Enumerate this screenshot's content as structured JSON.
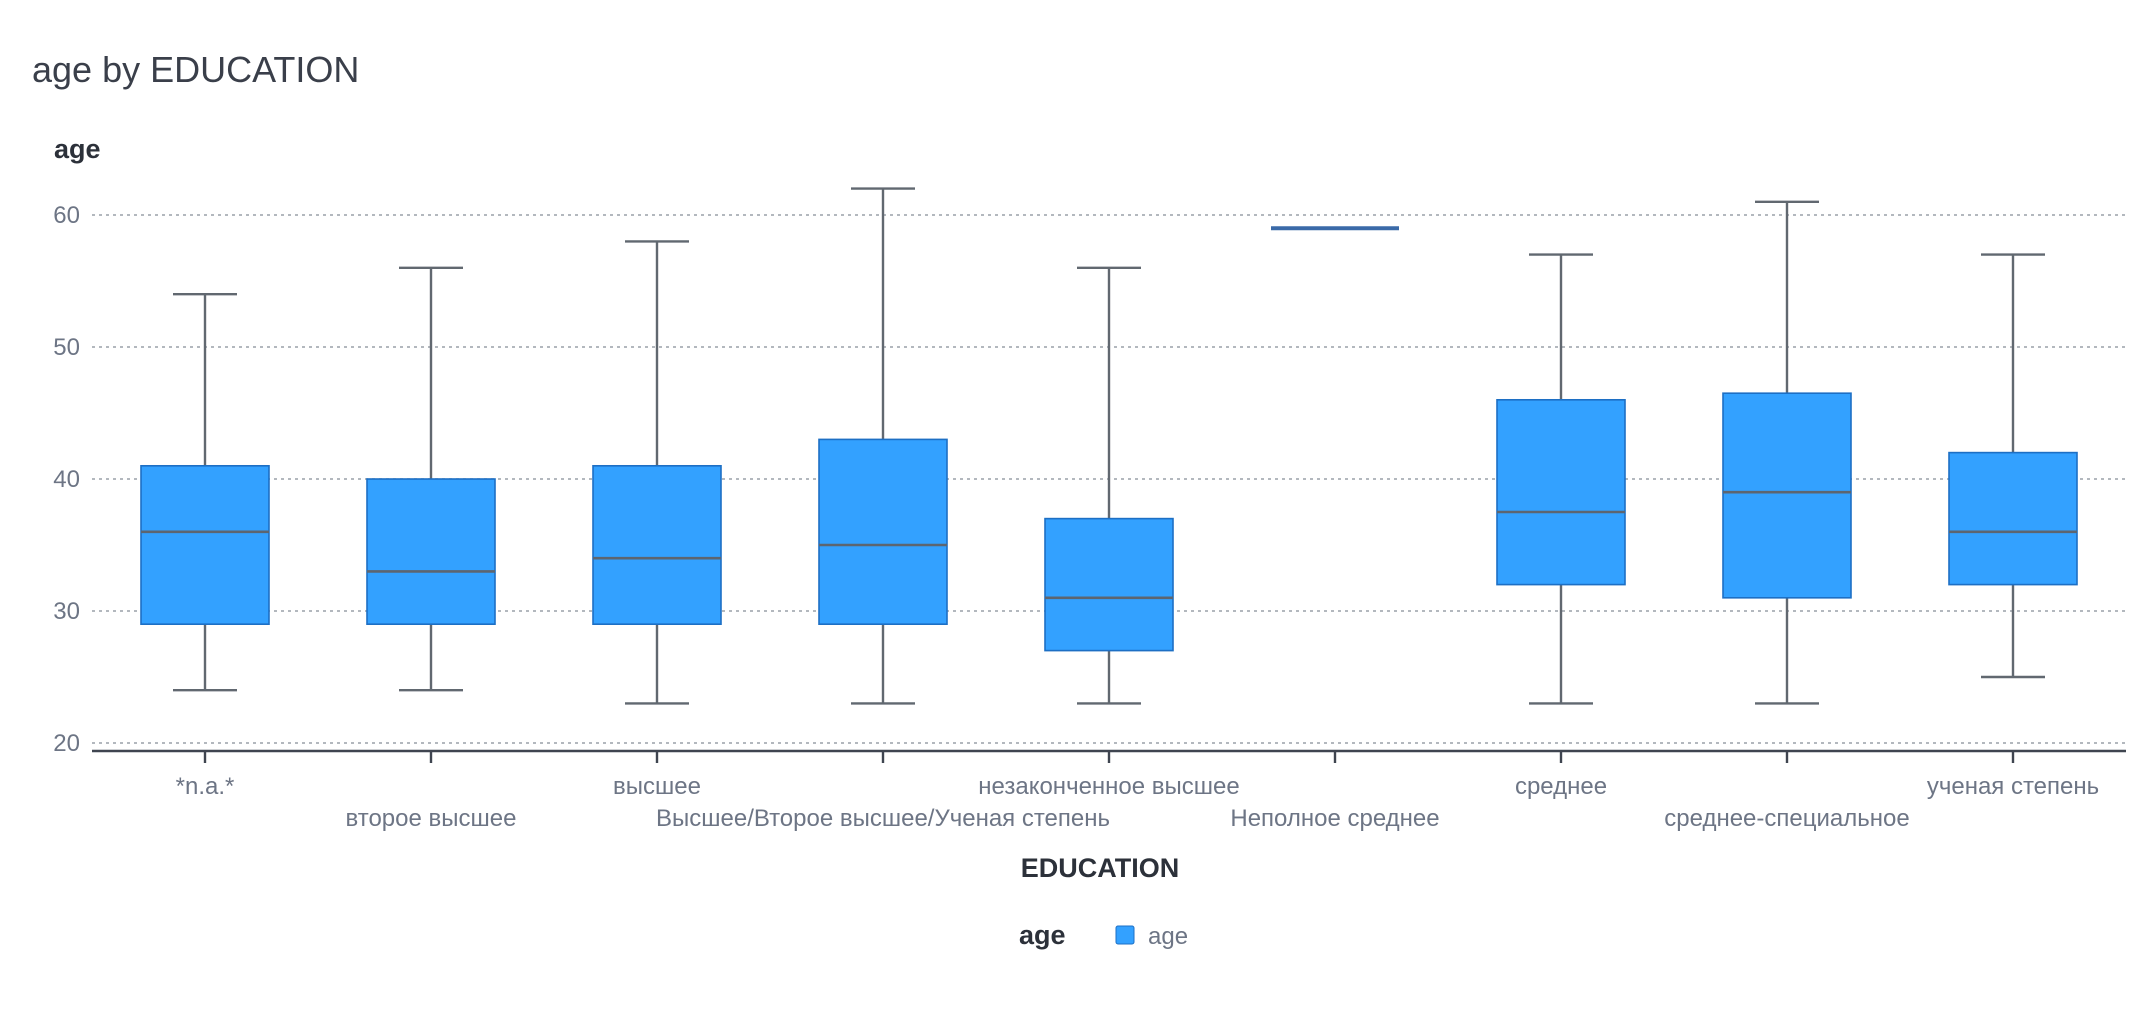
{
  "chart_data": {
    "type": "boxplot",
    "title": "age by EDUCATION",
    "xlabel": "EDUCATION",
    "ylabel": "age",
    "ylim": [
      20,
      62
    ],
    "yticks": [
      20,
      30,
      40,
      50,
      60
    ],
    "grid": true,
    "color": "#33a1ff",
    "single_value_color": "#3a6aa8",
    "categories": [
      "*n.a.*",
      "второе высшее",
      "высшее",
      "Высшее/Второе высшее/Ученая степень",
      "незаконченное высшее",
      "Неполное среднее",
      "среднее",
      "среднее-специальное",
      "ученая степень"
    ],
    "series": [
      {
        "name": "age",
        "boxes": [
          {
            "min": 24,
            "q1": 29,
            "median": 36,
            "q3": 41,
            "max": 54
          },
          {
            "min": 24,
            "q1": 29,
            "median": 33,
            "q3": 40,
            "max": 56
          },
          {
            "min": 23,
            "q1": 29,
            "median": 34,
            "q3": 41,
            "max": 58
          },
          {
            "min": 23,
            "q1": 29,
            "median": 35,
            "q3": 43,
            "max": 62
          },
          {
            "min": 23,
            "q1": 27,
            "median": 31,
            "q3": 37,
            "max": 56
          },
          {
            "min": 59,
            "q1": 59,
            "median": 59,
            "q3": 59,
            "max": 59
          },
          {
            "min": 23,
            "q1": 32,
            "median": 37.5,
            "q3": 46,
            "max": 57
          },
          {
            "min": 23,
            "q1": 31,
            "median": 39,
            "q3": 46.5,
            "max": 61
          },
          {
            "min": 25,
            "q1": 32,
            "median": 36,
            "q3": 42,
            "max": 57
          }
        ]
      }
    ],
    "legend": {
      "title": "age",
      "position": "bottom-center",
      "items": [
        "age"
      ]
    }
  }
}
